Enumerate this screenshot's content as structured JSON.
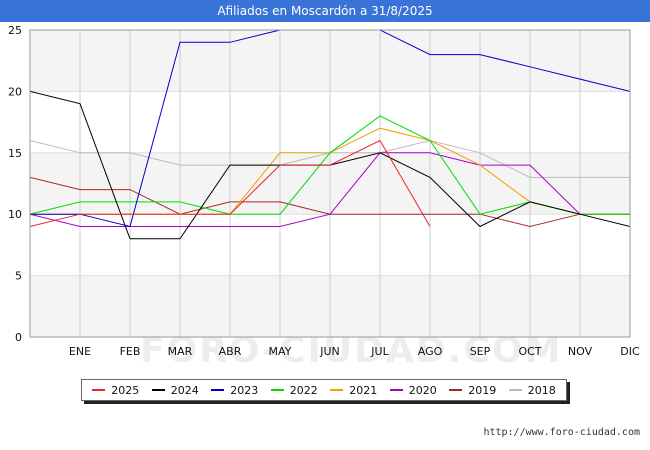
{
  "header": {
    "title": "Afiliados en Moscardón a 31/8/2025"
  },
  "footer": {
    "url": "http://www.foro-ciudad.com"
  },
  "watermark": {
    "text": "FORO-CIUDAD.COM"
  },
  "chart_data": {
    "type": "line",
    "title": "Afiliados en Moscardón a 31/8/2025",
    "xlabel": "",
    "ylabel": "",
    "categories": [
      "",
      "ENE",
      "FEB",
      "MAR",
      "ABR",
      "MAY",
      "JUN",
      "JUL",
      "AGO",
      "SEP",
      "OCT",
      "NOV",
      "DIC"
    ],
    "ylim": [
      0,
      25
    ],
    "yticks": [
      0,
      5,
      10,
      15,
      20,
      25
    ],
    "grid": true,
    "legend": "bottom",
    "series": [
      {
        "name": "2025",
        "color": "#e8262b",
        "values": [
          9,
          10,
          10,
          10,
          10,
          14,
          14,
          16,
          9,
          null,
          null,
          null,
          null
        ]
      },
      {
        "name": "2024",
        "color": "#000000",
        "values": [
          20,
          19,
          8,
          8,
          14,
          14,
          14,
          15,
          13,
          9,
          11,
          10,
          9
        ]
      },
      {
        "name": "2023",
        "color": "#0000cc",
        "values": [
          10,
          10,
          9,
          24,
          24,
          25,
          25,
          25,
          23,
          23,
          22,
          21,
          20
        ]
      },
      {
        "name": "2022",
        "color": "#00dd00",
        "values": [
          10,
          11,
          11,
          11,
          10,
          10,
          15,
          18,
          16,
          10,
          11,
          10,
          10
        ]
      },
      {
        "name": "2021",
        "color": "#f0a000",
        "values": [
          10,
          10,
          10,
          10,
          10,
          15,
          15,
          17,
          16,
          14,
          11,
          10,
          10
        ]
      },
      {
        "name": "2020",
        "color": "#aa00cc",
        "values": [
          10,
          9,
          9,
          9,
          9,
          9,
          10,
          15,
          15,
          14,
          14,
          10,
          10
        ]
      },
      {
        "name": "2019",
        "color": "#a52a2a",
        "values": [
          13,
          12,
          12,
          10,
          11,
          11,
          10,
          10,
          10,
          10,
          9,
          10,
          10
        ]
      },
      {
        "name": "2018",
        "color": "#bbbbbb",
        "values": [
          16,
          15,
          15,
          14,
          14,
          14,
          15,
          15,
          16,
          15,
          13,
          13,
          13
        ]
      }
    ]
  }
}
